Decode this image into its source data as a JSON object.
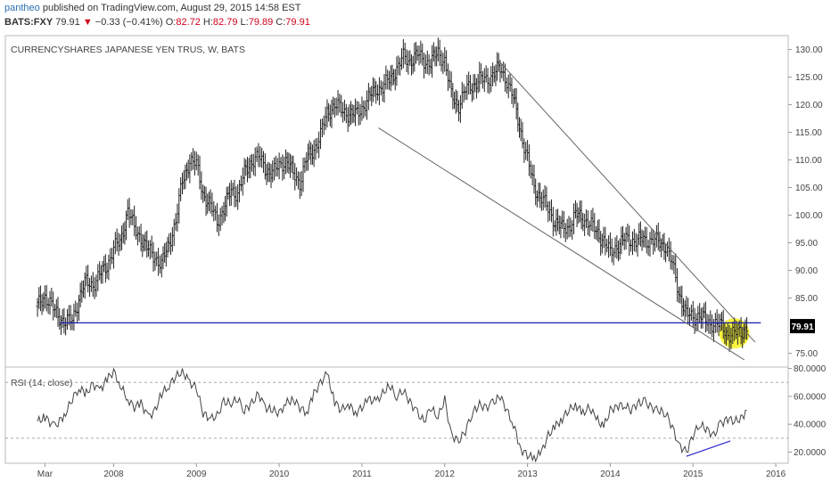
{
  "header": {
    "user": "pantheo",
    "published_text": "published on TradingView.com, August 29, 2015 14:58 EST"
  },
  "quote": {
    "symbol": "BATS:FXY",
    "last": "79.91",
    "arrow": "▼",
    "change": "−0.33 (−0.41%)",
    "o_label": "O:",
    "o_value": "82.72",
    "h_label": "H:",
    "h_value": "82.79",
    "l_label": "L:",
    "l_value": "79.89",
    "c_label": "C:",
    "c_value": "79.91"
  },
  "colors": {
    "price_bars": "#222222",
    "support_line": "#1a1ab4",
    "trendlines": "#666666",
    "rsi_line": "#444444",
    "rsi_divergence": "#3a3ad0",
    "highlight": "#f5f000",
    "price_badge_bg": "#000000",
    "price_badge_text": "#ffffff"
  },
  "chart_data": [
    {
      "type": "ohlc",
      "title": "CURRENCYSHARES JAPANESE YEN TRUS, W, BATS",
      "interval": "W",
      "x_ticks": [
        "Mar",
        "2008",
        "2009",
        "2010",
        "2011",
        "2012",
        "2013",
        "2014",
        "2015",
        "2016"
      ],
      "x_tick_dates": [
        2007.17,
        2008.0,
        2009.0,
        2010.0,
        2011.0,
        2012.0,
        2013.0,
        2014.0,
        2015.0,
        2016.0
      ],
      "y_ticks": [
        "130.00",
        "125.00",
        "120.00",
        "115.00",
        "110.00",
        "105.00",
        "100.00",
        "95.00",
        "90.00",
        "85.00",
        "75.00"
      ],
      "ylim": [
        72.5,
        132.5
      ],
      "last_price_label": "79.91",
      "x": [
        2007.08,
        2007.17,
        2007.29,
        2007.42,
        2007.5,
        2007.58,
        2007.67,
        2007.75,
        2007.83,
        2007.92,
        2008.0,
        2008.08,
        2008.17,
        2008.25,
        2008.33,
        2008.42,
        2008.5,
        2008.58,
        2008.67,
        2008.75,
        2008.83,
        2008.92,
        2009.0,
        2009.08,
        2009.17,
        2009.25,
        2009.33,
        2009.42,
        2009.5,
        2009.58,
        2009.67,
        2009.75,
        2009.83,
        2009.92,
        2010.0,
        2010.08,
        2010.17,
        2010.25,
        2010.33,
        2010.42,
        2010.5,
        2010.58,
        2010.67,
        2010.75,
        2010.83,
        2010.92,
        2011.0,
        2011.08,
        2011.17,
        2011.25,
        2011.33,
        2011.42,
        2011.5,
        2011.58,
        2011.67,
        2011.75,
        2011.83,
        2011.92,
        2012.0,
        2012.08,
        2012.17,
        2012.25,
        2012.33,
        2012.42,
        2012.5,
        2012.58,
        2012.67,
        2012.75,
        2012.83,
        2012.92,
        2013.0,
        2013.08,
        2013.17,
        2013.25,
        2013.33,
        2013.42,
        2013.5,
        2013.58,
        2013.67,
        2013.75,
        2013.83,
        2013.92,
        2014.0,
        2014.08,
        2014.17,
        2014.25,
        2014.33,
        2014.42,
        2014.5,
        2014.58,
        2014.67,
        2014.75,
        2014.83,
        2014.92,
        2015.0,
        2015.08,
        2015.17,
        2015.25,
        2015.33,
        2015.42,
        2015.5,
        2015.58,
        2015.65
      ],
      "close": [
        83.5,
        85.5,
        82.5,
        80.5,
        81.0,
        85.0,
        88.0,
        87.5,
        89.0,
        91.0,
        94.0,
        95.0,
        101.0,
        97.5,
        96.0,
        93.5,
        92.5,
        91.0,
        95.0,
        99.0,
        106.0,
        110.0,
        109.0,
        104.0,
        101.5,
        99.0,
        101.0,
        104.5,
        104.0,
        107.5,
        110.0,
        110.5,
        108.5,
        107.5,
        109.0,
        110.0,
        107.5,
        106.0,
        110.0,
        112.0,
        114.5,
        118.5,
        120.0,
        119.0,
        118.5,
        118.0,
        119.5,
        121.0,
        123.0,
        123.0,
        124.5,
        126.5,
        128.5,
        128.0,
        129.0,
        128.0,
        127.5,
        129.5,
        128.0,
        121.5,
        120.0,
        122.5,
        123.5,
        124.5,
        124.5,
        125.5,
        126.5,
        124.5,
        121.0,
        115.0,
        110.0,
        105.0,
        103.0,
        101.0,
        99.0,
        97.5,
        98.0,
        100.0,
        99.5,
        98.5,
        97.0,
        95.5,
        93.0,
        94.5,
        95.5,
        95.5,
        95.5,
        95.5,
        95.5,
        95.0,
        94.5,
        91.0,
        86.0,
        82.0,
        81.5,
        82.0,
        80.5,
        80.5,
        80.0,
        78.5,
        78.5,
        78.8,
        79.91
      ],
      "support_level": 80.5,
      "annotations": [
        "upper falling trendline",
        "lower falling trendline",
        "horizontal support line",
        "yellow highlight circle"
      ]
    },
    {
      "type": "line",
      "title": "RSI (14, close)",
      "y_ticks": [
        "80.0000",
        "60.0000",
        "40.0000",
        "20.0000"
      ],
      "ylim": [
        12,
        81
      ],
      "guide_levels": [
        70,
        30
      ],
      "x": [
        2007.08,
        2007.17,
        2007.29,
        2007.42,
        2007.5,
        2007.58,
        2007.67,
        2007.75,
        2007.83,
        2007.92,
        2008.0,
        2008.08,
        2008.17,
        2008.25,
        2008.33,
        2008.42,
        2008.5,
        2008.58,
        2008.67,
        2008.75,
        2008.83,
        2008.92,
        2009.0,
        2009.08,
        2009.17,
        2009.25,
        2009.33,
        2009.42,
        2009.5,
        2009.58,
        2009.67,
        2009.75,
        2009.83,
        2009.92,
        2010.0,
        2010.08,
        2010.17,
        2010.25,
        2010.33,
        2010.42,
        2010.5,
        2010.58,
        2010.67,
        2010.75,
        2010.83,
        2010.92,
        2011.0,
        2011.08,
        2011.17,
        2011.25,
        2011.33,
        2011.42,
        2011.5,
        2011.58,
        2011.67,
        2011.75,
        2011.83,
        2011.92,
        2012.0,
        2012.08,
        2012.17,
        2012.25,
        2012.33,
        2012.42,
        2012.5,
        2012.58,
        2012.67,
        2012.75,
        2012.83,
        2012.92,
        2013.0,
        2013.08,
        2013.17,
        2013.25,
        2013.33,
        2013.42,
        2013.5,
        2013.58,
        2013.67,
        2013.75,
        2013.83,
        2013.92,
        2014.0,
        2014.08,
        2014.17,
        2014.25,
        2014.33,
        2014.42,
        2014.5,
        2014.58,
        2014.67,
        2014.75,
        2014.83,
        2014.92,
        2015.0,
        2015.08,
        2015.17,
        2015.25,
        2015.33,
        2015.42,
        2015.5,
        2015.58,
        2015.65
      ],
      "values": [
        42,
        45,
        38,
        48,
        58,
        66,
        62,
        69,
        64,
        72,
        78,
        68,
        58,
        52,
        55,
        45,
        50,
        62,
        68,
        74,
        78,
        70,
        66,
        48,
        44,
        46,
        56,
        55,
        58,
        50,
        55,
        62,
        52,
        50,
        48,
        55,
        58,
        52,
        48,
        62,
        70,
        76,
        56,
        50,
        55,
        48,
        52,
        58,
        56,
        62,
        68,
        60,
        64,
        56,
        48,
        42,
        52,
        45,
        58,
        32,
        28,
        35,
        48,
        54,
        52,
        55,
        60,
        50,
        40,
        22,
        18,
        15,
        20,
        32,
        38,
        44,
        50,
        54,
        48,
        52,
        44,
        38,
        50,
        53,
        54,
        50,
        55,
        56,
        52,
        50,
        48,
        38,
        25,
        20,
        32,
        40,
        36,
        32,
        40,
        44,
        42,
        44,
        50
      ],
      "divergence_line": {
        "x": [
          2014.92,
          2015.45
        ],
        "y": [
          17,
          28
        ]
      }
    }
  ]
}
